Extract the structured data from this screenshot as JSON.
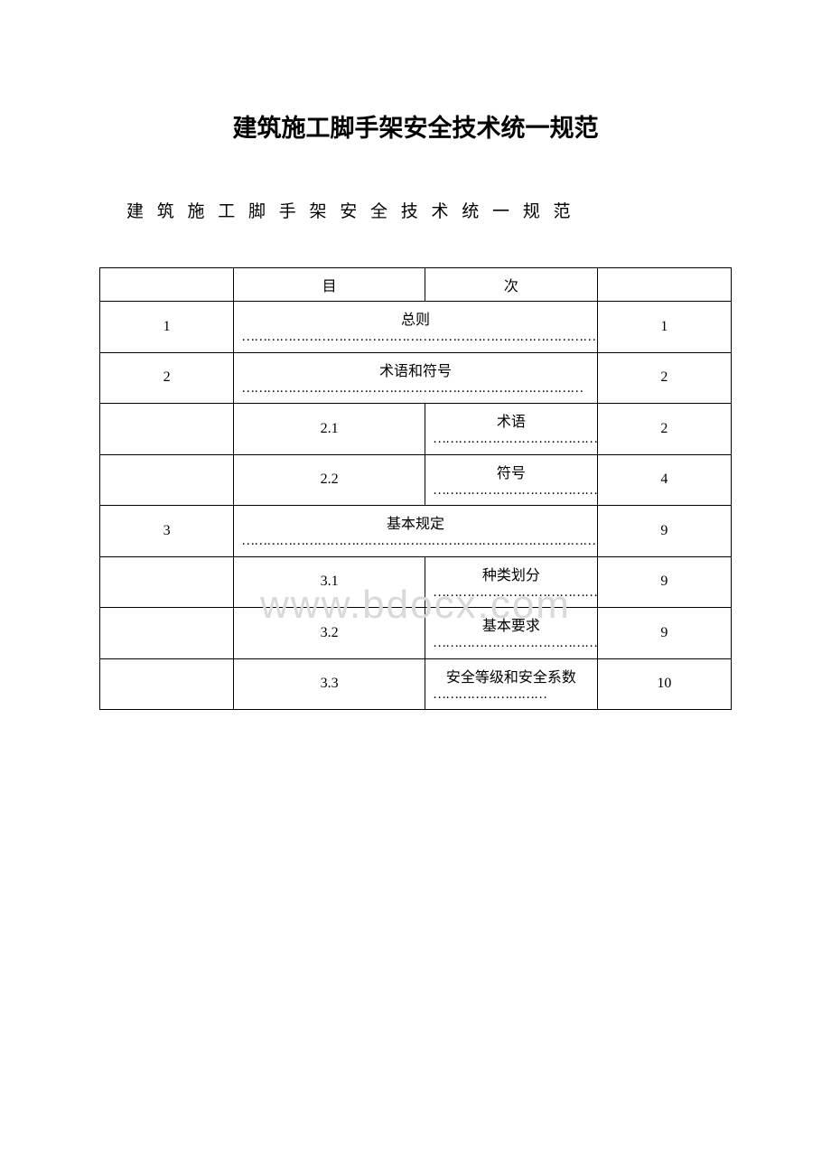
{
  "title": "建筑施工脚手架安全技术统一规范",
  "subtitle": "建 筑 施 工 脚 手 架 安 全 技 术 统 一 规 范",
  "watermark": "www.bdocx.com",
  "header": {
    "col2": "目",
    "col3": "次"
  },
  "rows": [
    {
      "type": "main",
      "num": "1",
      "label": "总则",
      "dots": "………………………………………………………………………………",
      "page": "1"
    },
    {
      "type": "main",
      "num": "2",
      "label": "术语和符号",
      "dots": "………………………………………………………………………",
      "page": "2"
    },
    {
      "type": "sub",
      "subnum": "2.1",
      "sublabel": "术语",
      "dots": "…………………………………………………………………………",
      "page": "2"
    },
    {
      "type": "sub",
      "subnum": "2.2",
      "sublabel": "符号",
      "dots": "…………………………………………………………………………",
      "page": "4"
    },
    {
      "type": "main",
      "num": "3",
      "label": "基本规定",
      "dots": "…………………………………………………………………………",
      "page": "9"
    },
    {
      "type": "sub",
      "subnum": "3.1",
      "sublabel": "种类划分",
      "dots": "………………………………………………………………………",
      "page": "9"
    },
    {
      "type": "sub",
      "subnum": "3.2",
      "sublabel": "基本要求",
      "dots": "………………………………………………………………………",
      "page": "9"
    },
    {
      "type": "sub-partial",
      "subnum": "3.3",
      "sublabel": "安全等级和安全系数",
      "dots": "………………………",
      "page": "10"
    }
  ],
  "colors": {
    "background": "#ffffff",
    "text": "#000000",
    "border": "#000000",
    "watermark": "#d9d9d9"
  },
  "fonts": {
    "title_size": 27,
    "subtitle_size": 19,
    "body_size": 16,
    "watermark_size": 44
  }
}
